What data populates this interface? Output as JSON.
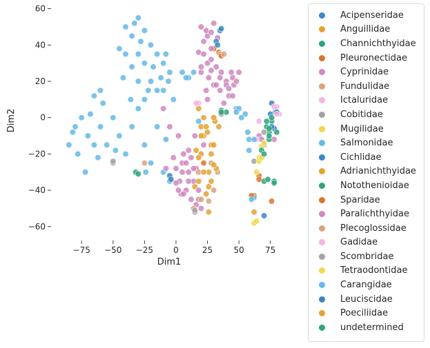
{
  "chart_data": {
    "type": "scatter",
    "xlabel": "Dim1",
    "ylabel": "Dim2",
    "xlim": [
      -91,
      85
    ],
    "ylim": [
      -65,
      61
    ],
    "xticks": [
      -75,
      -50,
      -25,
      0,
      25,
      50,
      75
    ],
    "yticks": [
      -60,
      -40,
      -20,
      0,
      20,
      40,
      60
    ],
    "legend_position": "outside-right",
    "series": [
      {
        "name": "Acipenseridae",
        "color": "#3b86c1",
        "points": [
          [
            75,
            2
          ],
          [
            79,
            3
          ],
          [
            76,
            8
          ]
        ]
      },
      {
        "name": "Anguillidae",
        "color": "#e3a233",
        "points": [
          [
            18,
            5
          ],
          [
            22,
            -10
          ],
          [
            28,
            -15
          ],
          [
            20,
            -20
          ],
          [
            26,
            -30
          ],
          [
            31,
            -2
          ],
          [
            62,
            -52
          ]
        ]
      },
      {
        "name": "Channichthyidae",
        "color": "#2ca47c",
        "points": [
          [
            36,
            4
          ],
          [
            40,
            3
          ],
          [
            72,
            -5
          ],
          [
            74,
            -8
          ],
          [
            70,
            -35
          ],
          [
            73,
            -34
          ],
          [
            76,
            -2
          ]
        ]
      },
      {
        "name": "Pleuronectidae",
        "color": "#d9752f",
        "points": [
          [
            30,
            38
          ],
          [
            34,
            36
          ],
          [
            62,
            -43
          ],
          [
            66,
            -32
          ],
          [
            76,
            -46
          ]
        ]
      },
      {
        "name": "Cyprinidae",
        "color": "#cf87c1",
        "points": [
          [
            20,
            50
          ],
          [
            25,
            45
          ],
          [
            30,
            52
          ],
          [
            22,
            42
          ],
          [
            28,
            38
          ],
          [
            18,
            36
          ],
          [
            25,
            30
          ],
          [
            32,
            28
          ],
          [
            20,
            25
          ],
          [
            26,
            22
          ],
          [
            30,
            18
          ],
          [
            35,
            15
          ],
          [
            40,
            20
          ],
          [
            45,
            22
          ],
          [
            50,
            25
          ],
          [
            42,
            12
          ],
          [
            46,
            18
          ],
          [
            5,
            -25
          ],
          [
            10,
            -30
          ],
          [
            3,
            -35
          ],
          [
            8,
            -40
          ],
          [
            12,
            -22
          ],
          [
            16,
            -28
          ],
          [
            0,
            -28
          ],
          [
            6,
            -20
          ],
          [
            14,
            -35
          ],
          [
            18,
            -45
          ],
          [
            20,
            -50
          ],
          [
            22,
            -15
          ],
          [
            15,
            -10
          ],
          [
            25,
            10
          ],
          [
            -5,
            -5
          ],
          [
            -10,
            5
          ],
          [
            24,
            48
          ],
          [
            33,
            44
          ],
          [
            28,
            26
          ],
          [
            38,
            8
          ],
          [
            2,
            -10
          ],
          [
            4,
            -42
          ],
          [
            66,
            -10
          ],
          [
            68,
            -12
          ],
          [
            70,
            -15
          ],
          [
            78,
            -12
          ]
        ]
      },
      {
        "name": "Fundulidae",
        "color": "#d9a47d",
        "points": [
          [
            30,
            -40
          ],
          [
            33,
            -30
          ],
          [
            28,
            -25
          ],
          [
            35,
            35
          ],
          [
            -25,
            -25
          ],
          [
            20,
            -45
          ]
        ]
      },
      {
        "name": "Ictaluridae",
        "color": "#f6b3e0",
        "points": [
          [
            18,
            8
          ],
          [
            80,
            6
          ],
          [
            82,
            2
          ],
          [
            64,
            -12
          ]
        ]
      },
      {
        "name": "Cobitidae",
        "color": "#a3a3a3",
        "points": [
          [
            -50,
            -25
          ],
          [
            15,
            -52
          ],
          [
            36,
            3
          ],
          [
            70,
            -8
          ]
        ]
      },
      {
        "name": "Mugilidae",
        "color": "#f0d84b",
        "points": [
          [
            64,
            -30
          ],
          [
            66,
            -22
          ],
          [
            62,
            -58
          ],
          [
            68,
            -16
          ]
        ]
      },
      {
        "name": "Salmonidae",
        "color": "#64b8e6",
        "points": [
          [
            -80,
            -5
          ],
          [
            -75,
            0
          ],
          [
            -70,
            -10
          ],
          [
            -85,
            -15
          ],
          [
            -78,
            -20
          ],
          [
            -65,
            -15
          ],
          [
            -72,
            -30
          ],
          [
            -60,
            -5
          ],
          [
            -55,
            -15
          ],
          [
            -50,
            0
          ],
          [
            -45,
            -10
          ],
          [
            -40,
            -20
          ],
          [
            -35,
            -5
          ],
          [
            -30,
            5
          ],
          [
            -25,
            -15
          ],
          [
            -20,
            -25
          ],
          [
            -15,
            -5
          ],
          [
            -10,
            -30
          ],
          [
            -5,
            -35
          ],
          [
            -40,
            50
          ],
          [
            -35,
            45
          ],
          [
            -30,
            55
          ],
          [
            -25,
            48
          ],
          [
            -20,
            40
          ],
          [
            -15,
            35
          ],
          [
            -10,
            30
          ],
          [
            -5,
            25
          ],
          [
            -30,
            35
          ],
          [
            -25,
            30
          ],
          [
            -35,
            28
          ],
          [
            -40,
            35
          ],
          [
            -45,
            38
          ],
          [
            -20,
            20
          ],
          [
            -15,
            15
          ],
          [
            -25,
            10
          ],
          [
            -30,
            20
          ],
          [
            -60,
            15
          ],
          [
            -65,
            12
          ],
          [
            -58,
            8
          ],
          [
            -42,
            22
          ],
          [
            -28,
            42
          ],
          [
            -18,
            28
          ],
          [
            -12,
            22
          ],
          [
            -8,
            35
          ],
          [
            -33,
            52
          ],
          [
            -22,
            15
          ],
          [
            -36,
            10
          ],
          [
            -48,
            -18
          ],
          [
            -62,
            -22
          ],
          [
            -82,
            -8
          ],
          [
            -68,
            2
          ],
          [
            5,
            25
          ],
          [
            10,
            22
          ],
          [
            18,
            -2
          ],
          [
            48,
            5
          ],
          [
            58,
            -12
          ],
          [
            62,
            -44
          ],
          [
            -2,
            10
          ],
          [
            -8,
            -12
          ],
          [
            -24,
            -30
          ]
        ]
      },
      {
        "name": "Cichlidae",
        "color": "#3b86c1",
        "points": [
          [
            35,
            48
          ],
          [
            32,
            42
          ],
          [
            -5,
            -32
          ],
          [
            70,
            -54
          ],
          [
            78,
            -6
          ],
          [
            80,
            3
          ]
        ]
      },
      {
        "name": "Adrianichthyidae",
        "color": "#e3a233",
        "points": [
          [
            20,
            -5
          ],
          [
            25,
            -8
          ],
          [
            30,
            -15
          ],
          [
            28,
            -35
          ],
          [
            24,
            -42
          ],
          [
            18,
            -35
          ],
          [
            22,
            0
          ],
          [
            15,
            -38
          ],
          [
            32,
            -28
          ],
          [
            26,
            -52
          ],
          [
            16,
            -18
          ],
          [
            30,
            0
          ]
        ]
      },
      {
        "name": "Notothenioidae",
        "color": "#2ca47c",
        "points": [
          [
            72,
            -2
          ],
          [
            76,
            0
          ],
          [
            80,
            -8
          ],
          [
            74,
            -12
          ],
          [
            -32,
            -30
          ],
          [
            78,
            -35
          ],
          [
            68,
            -18
          ]
        ]
      },
      {
        "name": "Sparidae",
        "color": "#d9752f",
        "points": [
          [
            66,
            -34
          ],
          [
            60,
            -43
          ],
          [
            36,
            34
          ],
          [
            22,
            -25
          ]
        ]
      },
      {
        "name": "Paralichthyidae",
        "color": "#cf87c1",
        "points": [
          [
            22,
            35
          ],
          [
            28,
            47
          ],
          [
            35,
            22
          ],
          [
            40,
            18
          ],
          [
            45,
            12
          ],
          [
            10,
            -35
          ],
          [
            5,
            -30
          ],
          [
            12,
            -45
          ],
          [
            18,
            -40
          ],
          [
            8,
            -25
          ],
          [
            0,
            -36
          ],
          [
            14,
            -28
          ],
          [
            28,
            32
          ],
          [
            36,
            25
          ],
          [
            48,
            20
          ],
          [
            42,
            16
          ],
          [
            20,
            28
          ],
          [
            2,
            -40
          ],
          [
            16,
            -48
          ],
          [
            -8,
            -28
          ],
          [
            44,
            25
          ],
          [
            32,
            18
          ],
          [
            24,
            15
          ],
          [
            -2,
            -22
          ],
          [
            10,
            -18
          ],
          [
            6,
            -42
          ]
        ]
      },
      {
        "name": "Plecoglossidae",
        "color": "#d9a47d",
        "points": [
          [
            38,
            35
          ],
          [
            18,
            -30
          ],
          [
            26,
            -46
          ],
          [
            14,
            -50
          ]
        ]
      },
      {
        "name": "Gadidae",
        "color": "#f6b3e0",
        "points": [
          [
            80,
            2
          ],
          [
            16,
            8
          ],
          [
            78,
            6
          ],
          [
            66,
            -2
          ]
        ]
      },
      {
        "name": "Scombridae",
        "color": "#a3a3a3",
        "points": [
          [
            -50,
            -24
          ],
          [
            62,
            -24
          ],
          [
            36,
            2
          ],
          [
            15,
            -51
          ]
        ]
      },
      {
        "name": "Tetraodontidae",
        "color": "#f0d84b",
        "points": [
          [
            66,
            -24
          ],
          [
            64,
            -57
          ],
          [
            68,
            -22
          ],
          [
            70,
            -14
          ]
        ]
      },
      {
        "name": "Carangidae",
        "color": "#64b8e6",
        "points": [
          [
            50,
            5
          ],
          [
            55,
            2
          ],
          [
            62,
            -12
          ],
          [
            48,
            3
          ],
          [
            57,
            -8
          ],
          [
            52,
            0
          ],
          [
            -6,
            20
          ],
          [
            8,
            22
          ],
          [
            14,
            25
          ],
          [
            -10,
            15
          ],
          [
            58,
            -18
          ],
          [
            60,
            -45
          ]
        ]
      },
      {
        "name": "Leuciscidae",
        "color": "#3b86c1",
        "points": [
          [
            33,
            40
          ],
          [
            36,
            49
          ],
          [
            -4,
            -34
          ],
          [
            76,
            -5
          ]
        ]
      },
      {
        "name": "Poeciliidae",
        "color": "#e3a233",
        "points": [
          [
            24,
            -5
          ],
          [
            28,
            -20
          ],
          [
            22,
            -30
          ],
          [
            26,
            -38
          ],
          [
            20,
            -10
          ],
          [
            30,
            -26
          ],
          [
            34,
            -5
          ],
          [
            18,
            -22
          ]
        ]
      },
      {
        "name": "undetermined",
        "color": "#2ca47c",
        "points": [
          [
            36,
            3
          ],
          [
            74,
            -6
          ],
          [
            -30,
            -31
          ],
          [
            78,
            -36
          ],
          [
            70,
            -20
          ],
          [
            74,
            -10
          ]
        ]
      }
    ]
  }
}
